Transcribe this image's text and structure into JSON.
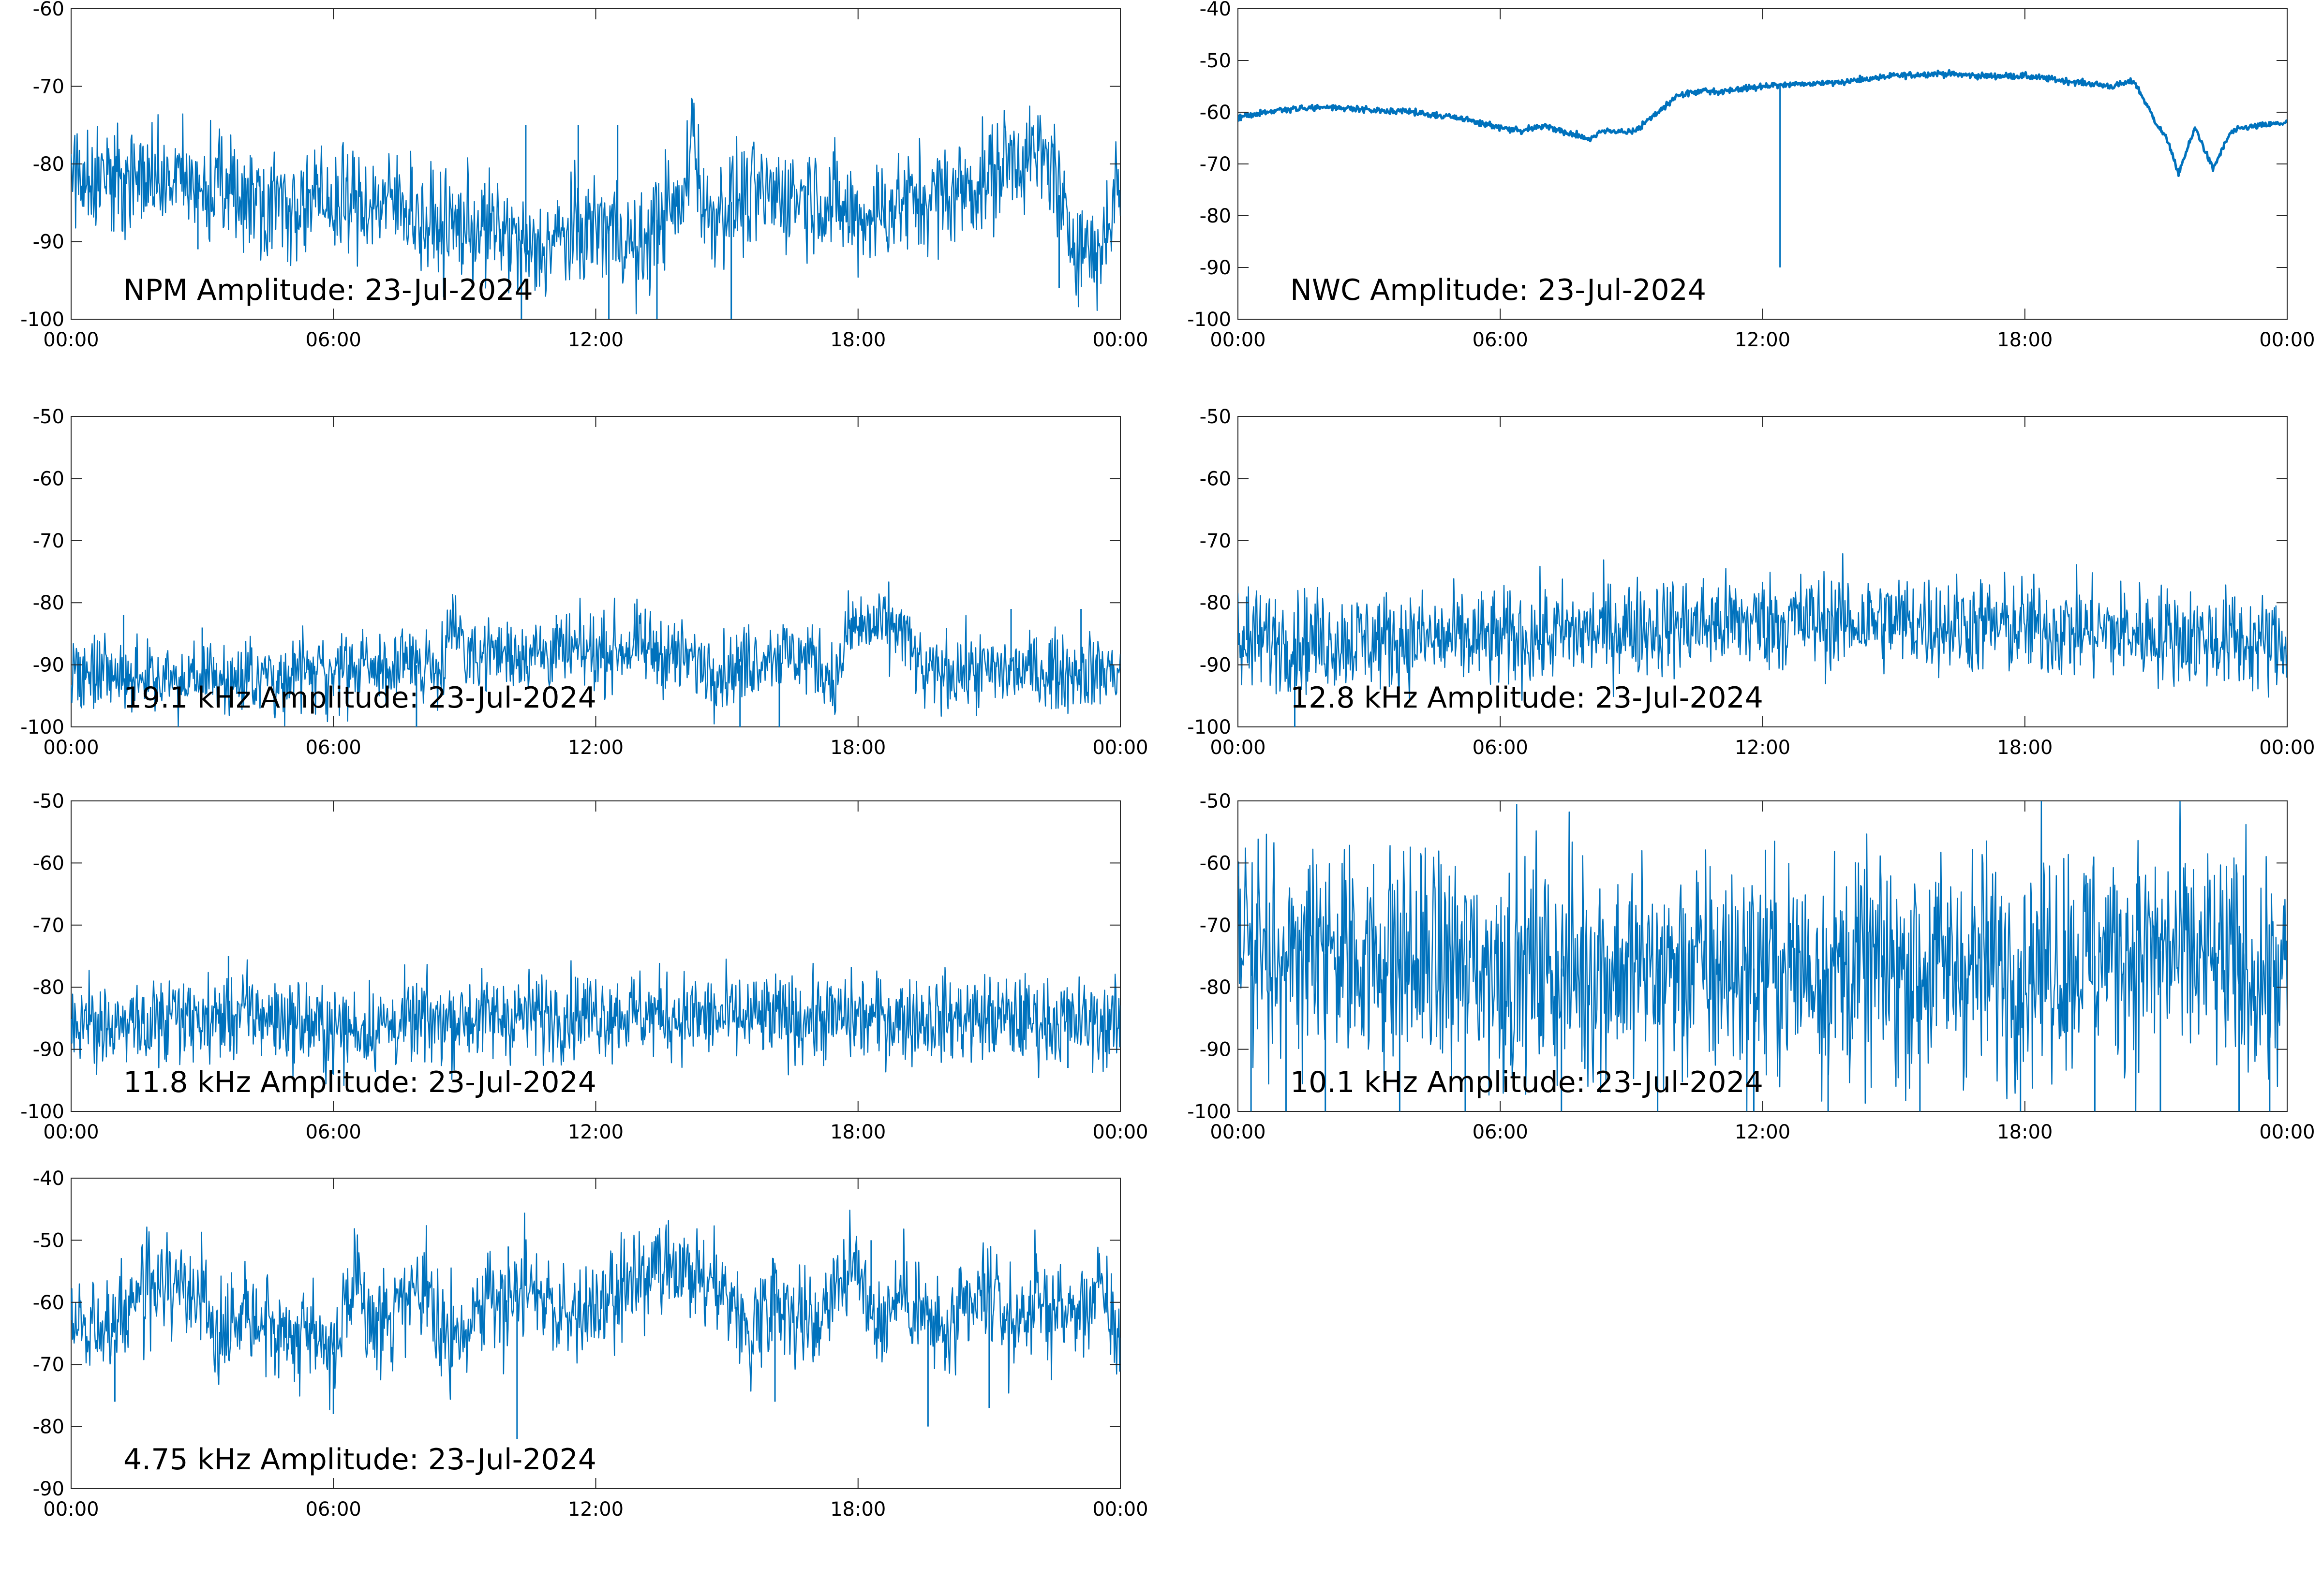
{
  "figure": {
    "date": "23-Jul-2024",
    "line_color": "#0072BD",
    "x_tick_labels": [
      "00:00",
      "06:00",
      "12:00",
      "18:00",
      "00:00"
    ],
    "x_tick_hours": [
      0,
      6,
      12,
      18,
      24
    ]
  },
  "chart_data": [
    {
      "type": "line",
      "title": "NPM Amplitude: 23-Jul-2024",
      "xlabel": "",
      "ylabel": "",
      "xlim": [
        0,
        24
      ],
      "ylim": [
        -100,
        -60
      ],
      "yticks": [
        -100,
        -90,
        -80,
        -70,
        -60
      ],
      "noise": 3.5,
      "x": [
        0,
        1,
        2,
        3,
        4,
        5,
        6,
        7,
        7.8,
        8,
        9,
        10,
        10.5,
        11,
        12,
        12.5,
        13,
        13.5,
        14,
        14.2,
        14.5,
        15,
        16,
        17,
        18,
        19,
        20,
        21,
        21.5,
        22,
        22.5,
        22.7,
        23.5,
        24
      ],
      "values": [
        -81,
        -82,
        -82,
        -83,
        -84,
        -85,
        -85,
        -85,
        -85,
        -88,
        -88,
        -89,
        -92,
        -90,
        -88,
        -88,
        -92,
        -86,
        -86,
        -74,
        -87,
        -85,
        -84,
        -84,
        -87,
        -85,
        -84,
        -82,
        -79,
        -79,
        -80,
        -88,
        -92,
        -81
      ],
      "spikes": [
        {
          "x": 2.9,
          "y": -91
        },
        {
          "x": 10.3,
          "y": -100
        },
        {
          "x": 10.4,
          "y": -75
        },
        {
          "x": 11.6,
          "y": -75
        },
        {
          "x": 12.3,
          "y": -100
        },
        {
          "x": 12.5,
          "y": -75
        },
        {
          "x": 13.4,
          "y": -100
        },
        {
          "x": 15.1,
          "y": -100
        },
        {
          "x": 22.6,
          "y": -96
        }
      ]
    },
    {
      "type": "line",
      "title": "NWC Amplitude: 23-Jul-2024",
      "xlabel": "",
      "ylabel": "",
      "xlim": [
        0,
        24
      ],
      "ylim": [
        -100,
        -40
      ],
      "yticks": [
        -100,
        -90,
        -80,
        -70,
        -60,
        -50,
        -40
      ],
      "noise": 0.3,
      "x": [
        0,
        1,
        2,
        3,
        4,
        5,
        6,
        6.5,
        7,
        7.5,
        8,
        8.5,
        9,
        9.5,
        10,
        10.5,
        11,
        12,
        13,
        14,
        15,
        16,
        17,
        18,
        19,
        20,
        20.5,
        21,
        21.3,
        21.5,
        21.9,
        22.3,
        22.7,
        23,
        24
      ],
      "values": [
        -61,
        -59.5,
        -59,
        -59.5,
        -60,
        -61,
        -63,
        -63.5,
        -62.5,
        -64,
        -65,
        -63.5,
        -64,
        -61,
        -57,
        -56,
        -56,
        -55,
        -54.5,
        -54,
        -53,
        -52.5,
        -53,
        -53,
        -54,
        -55,
        -54,
        -62,
        -66,
        -72,
        -63,
        -71,
        -64,
        -63,
        -62
      ],
      "spikes": [
        {
          "x": 12.4,
          "y": -90
        }
      ]
    },
    {
      "type": "line",
      "title": "19.1 kHz Amplitude: 23-Jul-2024",
      "xlabel": "",
      "ylabel": "",
      "xlim": [
        0,
        24
      ],
      "ylim": [
        -100,
        -50
      ],
      "yticks": [
        -100,
        -90,
        -80,
        -70,
        -60,
        -50
      ],
      "noise": 3,
      "x": [
        0,
        2,
        4,
        6,
        8,
        8.5,
        8.8,
        9,
        10,
        12,
        13,
        14,
        15,
        16,
        17,
        17.5,
        17.8,
        19,
        19.5,
        20,
        22,
        24
      ],
      "values": [
        -92,
        -92,
        -92,
        -91,
        -90,
        -89,
        -82,
        -88,
        -88,
        -88,
        -87,
        -89,
        -91,
        -88,
        -89,
        -93,
        -84,
        -84,
        -92,
        -91,
        -91,
        -91
      ],
      "spikes": [
        {
          "x": 1.2,
          "y": -82
        },
        {
          "x": 3.0,
          "y": -84
        },
        {
          "x": 7.9,
          "y": -100
        },
        {
          "x": 11.1,
          "y": -82
        },
        {
          "x": 15.3,
          "y": -100
        },
        {
          "x": 16.2,
          "y": -100
        },
        {
          "x": 21.5,
          "y": -81
        },
        {
          "x": 23.1,
          "y": -81
        }
      ]
    },
    {
      "type": "line",
      "title": "12.8 kHz Amplitude: 23-Jul-2024",
      "xlabel": "",
      "ylabel": "",
      "xlim": [
        0,
        24
      ],
      "ylim": [
        -100,
        -50
      ],
      "yticks": [
        -100,
        -90,
        -80,
        -70,
        -60,
        -50
      ],
      "noise": 4,
      "x": [
        0,
        3,
        6,
        9,
        12,
        15,
        18,
        21,
        24
      ],
      "values": [
        -86,
        -86,
        -86,
        -84,
        -83,
        -83,
        -84,
        -85,
        -87
      ],
      "spikes": [
        {
          "x": 1.3,
          "y": -100
        },
        {
          "x": 0.2,
          "y": -79
        },
        {
          "x": 22.8,
          "y": -79
        }
      ]
    },
    {
      "type": "line",
      "title": "11.8 kHz Amplitude: 23-Jul-2024",
      "xlabel": "",
      "ylabel": "",
      "xlim": [
        0,
        24
      ],
      "ylim": [
        -100,
        -50
      ],
      "yticks": [
        -100,
        -90,
        -80,
        -70,
        -60,
        -50
      ],
      "noise": 3.5,
      "x": [
        0,
        2,
        3.5,
        4,
        6,
        9,
        12,
        15,
        18,
        21,
        24
      ],
      "values": [
        -86,
        -86,
        -85,
        -84,
        -87,
        -85,
        -84,
        -85,
        -85,
        -85,
        -86
      ],
      "spikes": [
        {
          "x": 3.6,
          "y": -75
        },
        {
          "x": 22.8,
          "y": -93
        }
      ]
    },
    {
      "type": "line",
      "title": "10.1 kHz Amplitude: 23-Jul-2024",
      "xlabel": "",
      "ylabel": "",
      "xlim": [
        0,
        24
      ],
      "ylim": [
        -100,
        -50
      ],
      "yticks": [
        -100,
        -90,
        -80,
        -70,
        -60,
        -50
      ],
      "noise": 9,
      "clip": true,
      "x": [
        0,
        3,
        6,
        9,
        12,
        15,
        18,
        21,
        24
      ],
      "values": [
        -74,
        -75,
        -77,
        -77,
        -77,
        -77,
        -76,
        -74,
        -79
      ],
      "spikes": [
        {
          "x": 0.3,
          "y": -100
        },
        {
          "x": 1.1,
          "y": -100
        },
        {
          "x": 2.0,
          "y": -100
        },
        {
          "x": 3.7,
          "y": -100
        },
        {
          "x": 5.2,
          "y": -100
        },
        {
          "x": 7.4,
          "y": -100
        },
        {
          "x": 9.6,
          "y": -100
        },
        {
          "x": 11.8,
          "y": -100
        },
        {
          "x": 13.5,
          "y": -100
        },
        {
          "x": 15.6,
          "y": -100
        },
        {
          "x": 17.9,
          "y": -100
        },
        {
          "x": 19.6,
          "y": -100
        },
        {
          "x": 21.1,
          "y": -100
        },
        {
          "x": 22.9,
          "y": -100
        },
        {
          "x": 23.6,
          "y": -100
        },
        {
          "x": 23.0,
          "y": -62
        },
        {
          "x": 19.4,
          "y": -62
        }
      ]
    },
    {
      "type": "line",
      "title": "4.75 kHz Amplitude: 23-Jul-2024",
      "xlabel": "",
      "ylabel": "",
      "xlim": [
        0,
        24
      ],
      "ylim": [
        -90,
        -40
      ],
      "yticks": [
        -90,
        -80,
        -70,
        -60,
        -50,
        -40
      ],
      "noise": 4,
      "x": [
        0,
        1,
        1.5,
        2,
        3,
        3.5,
        4,
        5,
        5.5,
        6,
        6.5,
        7,
        8,
        8.8,
        9.5,
        10,
        10.5,
        11,
        12,
        13,
        14,
        15,
        15.5,
        16,
        17,
        17.5,
        18,
        18.5,
        19,
        20,
        21,
        21.5,
        22,
        23,
        23.5,
        24
      ],
      "values": [
        -62,
        -66,
        -58,
        -57,
        -59,
        -65,
        -60,
        -66,
        -63,
        -68,
        -58,
        -64,
        -58,
        -68,
        -58,
        -60,
        -55,
        -62,
        -62,
        -56,
        -56,
        -58,
        -66,
        -58,
        -64,
        -56,
        -55,
        -64,
        -58,
        -66,
        -58,
        -64,
        -60,
        -62,
        -58,
        -66
      ],
      "spikes": [
        {
          "x": 1.0,
          "y": -76
        },
        {
          "x": 6.0,
          "y": -78
        },
        {
          "x": 10.2,
          "y": -82
        },
        {
          "x": 10.0,
          "y": -51
        },
        {
          "x": 18.3,
          "y": -50
        },
        {
          "x": 19.6,
          "y": -80
        },
        {
          "x": 21.0,
          "y": -77
        },
        {
          "x": 16.1,
          "y": -76
        }
      ]
    }
  ]
}
